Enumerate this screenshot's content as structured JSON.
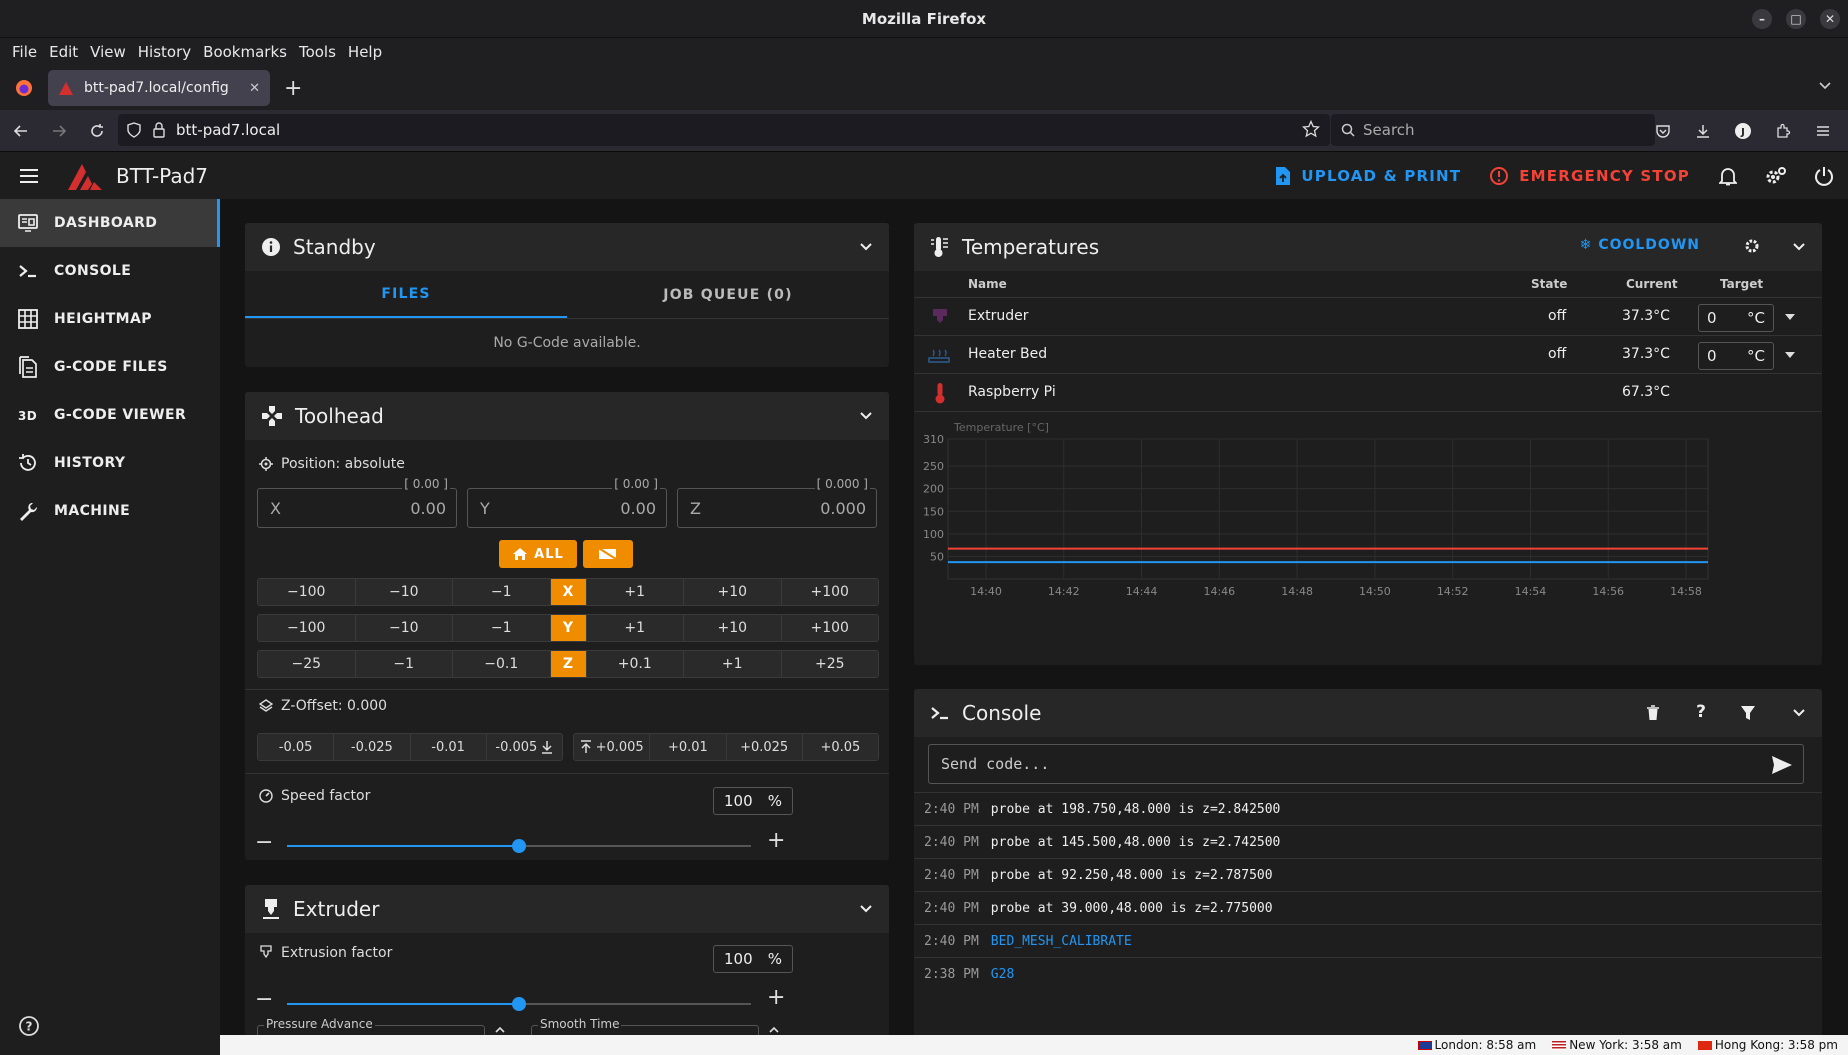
{
  "window": {
    "title": "Mozilla Firefox"
  },
  "menu": [
    "File",
    "Edit",
    "View",
    "History",
    "Bookmarks",
    "Tools",
    "Help"
  ],
  "tab": {
    "title": "btt-pad7.local/config"
  },
  "url": "btt-pad7.local",
  "search": {
    "placeholder": "Search"
  },
  "app": {
    "name": "BTT-Pad7",
    "upload_label": "UPLOAD & PRINT",
    "estop_label": "EMERGENCY STOP",
    "colors": {
      "accent": "#2196f3",
      "danger": "#f44336",
      "orange": "#f08c00"
    }
  },
  "sidebar": {
    "items": [
      {
        "label": "DASHBOARD",
        "icon": "monitor-dashboard-icon"
      },
      {
        "label": "CONSOLE",
        "icon": "console-icon"
      },
      {
        "label": "HEIGHTMAP",
        "icon": "grid-icon"
      },
      {
        "label": "G-CODE FILES",
        "icon": "files-icon"
      },
      {
        "label": "G-CODE VIEWER",
        "icon": "3d-icon"
      },
      {
        "label": "HISTORY",
        "icon": "history-icon"
      },
      {
        "label": "MACHINE",
        "icon": "wrench-icon"
      }
    ]
  },
  "standby": {
    "title": "Standby",
    "tabs": [
      "FILES",
      "JOB QUEUE (0)"
    ],
    "empty": "No G-Code available."
  },
  "toolhead": {
    "title": "Toolhead",
    "position_label": "Position: absolute",
    "axes": [
      {
        "label": "X",
        "value": "0.00",
        "hint": "[ 0.00 ]"
      },
      {
        "label": "Y",
        "value": "0.00",
        "hint": "[ 0.00 ]"
      },
      {
        "label": "Z",
        "value": "0.000",
        "hint": "[ 0.000 ]"
      }
    ],
    "home_all": "ALL",
    "jog": [
      {
        "axis": "X",
        "steps": [
          "−100",
          "−10",
          "−1",
          "+1",
          "+10",
          "+100"
        ]
      },
      {
        "axis": "Y",
        "steps": [
          "−100",
          "−10",
          "−1",
          "+1",
          "+10",
          "+100"
        ]
      },
      {
        "axis": "Z",
        "steps": [
          "−25",
          "−1",
          "−0.1",
          "+0.1",
          "+1",
          "+25"
        ]
      }
    ],
    "zoffset_label": "Z-Offset: 0.000",
    "zoffset_down": [
      "-0.05",
      "-0.025",
      "-0.01",
      "-0.005"
    ],
    "zoffset_up": [
      "+0.005",
      "+0.01",
      "+0.025",
      "+0.05"
    ],
    "speed_label": "Speed factor",
    "speed_value": "100",
    "speed_fraction": 0.5,
    "unit_pct": "%"
  },
  "extruder": {
    "title": "Extruder",
    "factor_label": "Extrusion factor",
    "factor_value": "100",
    "factor_fraction": 0.5,
    "pressure_label": "Pressure Advance",
    "smooth_label": "Smooth Time"
  },
  "temperatures": {
    "title": "Temperatures",
    "cooldown": "COOLDOWN",
    "headers": {
      "name": "Name",
      "state": "State",
      "current": "Current",
      "target": "Target"
    },
    "rows": [
      {
        "name": "Extruder",
        "state": "off",
        "current": "37.3°C",
        "target": "0",
        "unit": "°C",
        "icon": "extruder-icon"
      },
      {
        "name": "Heater Bed",
        "state": "off",
        "current": "37.3°C",
        "target": "0",
        "unit": "°C",
        "icon": "heater-bed-icon"
      },
      {
        "name": "Raspberry Pi",
        "state": "",
        "current": "67.3°C",
        "target": "",
        "unit": "",
        "icon": "thermometer-icon"
      }
    ]
  },
  "chart_data": {
    "type": "line",
    "ylabel": "Temperature [°C]",
    "ylim": [
      0,
      310
    ],
    "yticks": [
      50,
      100,
      150,
      200,
      250,
      310
    ],
    "x": [
      "14:40",
      "14:42",
      "14:44",
      "14:46",
      "14:48",
      "14:50",
      "14:52",
      "14:54",
      "14:56",
      "14:58"
    ],
    "grid": true,
    "series": [
      {
        "name": "",
        "color": "#f44336",
        "values": [
          67.3,
          67.3,
          67.3,
          67.3,
          67.3,
          67.3,
          67.3,
          67.3,
          67.3,
          67.3
        ]
      },
      {
        "name": "",
        "color": "#2196f3",
        "values": [
          37.3,
          37.3,
          37.3,
          37.3,
          37.3,
          37.3,
          37.3,
          37.3,
          37.3,
          37.3
        ]
      }
    ]
  },
  "console": {
    "title": "Console",
    "placeholder": "Send code...",
    "lines": [
      {
        "time": "2:40 PM",
        "text": "probe at 198.750,48.000 is z=2.842500",
        "cmd": false
      },
      {
        "time": "2:40 PM",
        "text": "probe at 145.500,48.000 is z=2.742500",
        "cmd": false
      },
      {
        "time": "2:40 PM",
        "text": "probe at 92.250,48.000 is z=2.787500",
        "cmd": false
      },
      {
        "time": "2:40 PM",
        "text": "probe at 39.000,48.000 is z=2.775000",
        "cmd": false
      },
      {
        "time": "2:40 PM",
        "text": "BED_MESH_CALIBRATE",
        "cmd": true
      },
      {
        "time": "2:38 PM",
        "text": "G28",
        "cmd": true
      }
    ]
  },
  "statusbar": {
    "clocks": [
      "London: 8:58 am",
      "New York: 3:58 am",
      "Hong Kong: 3:58 pm"
    ]
  }
}
